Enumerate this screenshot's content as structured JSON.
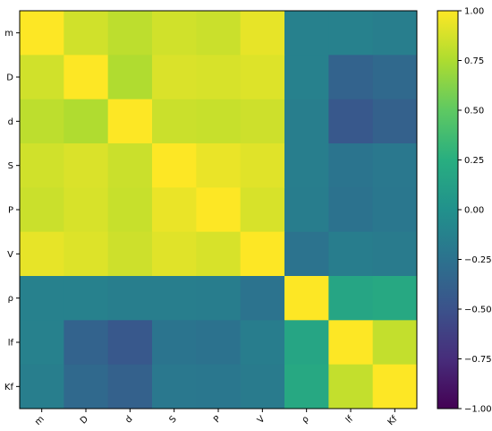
{
  "chart_data": {
    "type": "heatmap",
    "colormap": "viridis",
    "categories": [
      "m",
      "D",
      "d",
      "S",
      "P",
      "V",
      "ρ",
      "lf",
      "Kf"
    ],
    "values": [
      [
        1.0,
        0.86,
        0.8,
        0.86,
        0.84,
        0.93,
        -0.13,
        -0.13,
        -0.15
      ],
      [
        0.86,
        1.0,
        0.76,
        0.89,
        0.88,
        0.9,
        -0.13,
        -0.37,
        -0.32
      ],
      [
        0.8,
        0.76,
        1.0,
        0.84,
        0.83,
        0.85,
        -0.15,
        -0.45,
        -0.38
      ],
      [
        0.86,
        0.89,
        0.84,
        1.0,
        0.94,
        0.91,
        -0.15,
        -0.23,
        -0.2
      ],
      [
        0.84,
        0.88,
        0.83,
        0.94,
        1.0,
        0.88,
        -0.16,
        -0.25,
        -0.21
      ],
      [
        0.93,
        0.9,
        0.85,
        0.91,
        0.88,
        1.0,
        -0.24,
        -0.16,
        -0.18
      ],
      [
        -0.13,
        -0.13,
        -0.15,
        -0.15,
        -0.16,
        -0.24,
        1.0,
        0.17,
        0.2
      ],
      [
        -0.13,
        -0.37,
        -0.45,
        -0.23,
        -0.25,
        -0.16,
        0.17,
        1.0,
        0.82
      ],
      [
        -0.15,
        -0.32,
        -0.38,
        -0.2,
        -0.21,
        -0.18,
        0.2,
        0.82,
        1.0
      ]
    ],
    "vmin": -1.0,
    "vmax": 1.0,
    "colorbar_ticks": [
      "1.00",
      "0.75",
      "0.50",
      "0.25",
      "0.00",
      "−0.25",
      "−0.50",
      "−0.75",
      "−1.00"
    ],
    "colorbar_tick_values": [
      1.0,
      0.75,
      0.5,
      0.25,
      0.0,
      -0.25,
      -0.5,
      -0.75,
      -1.0
    ]
  }
}
